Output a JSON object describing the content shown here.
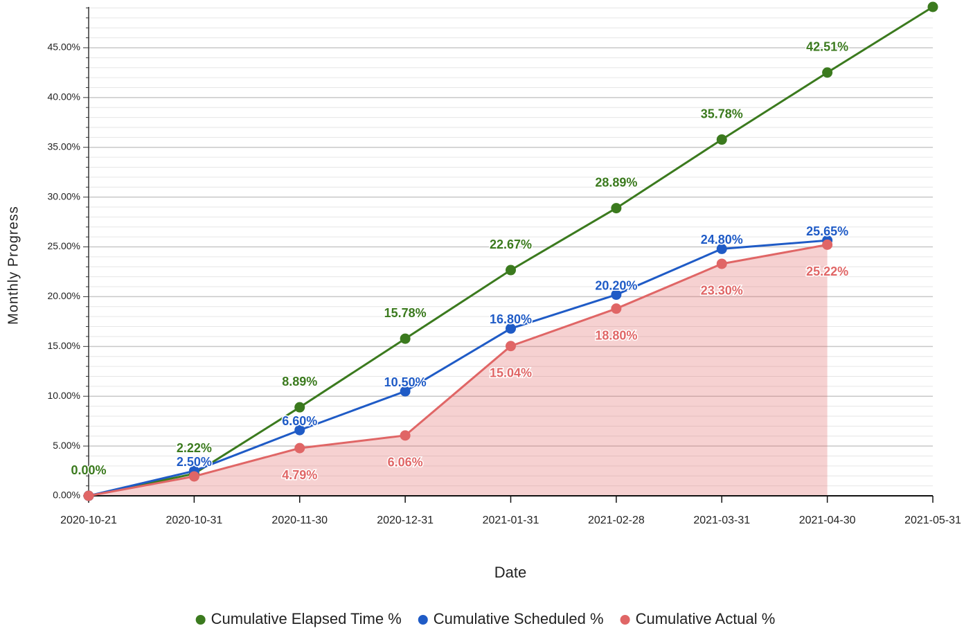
{
  "chart_data": {
    "type": "line",
    "x_label": "Date",
    "y_label": "Monthly Progress",
    "categories": [
      "2020-10-21",
      "2020-10-31",
      "2020-11-30",
      "2020-12-31",
      "2021-01-31",
      "2021-02-28",
      "2021-03-31",
      "2021-04-30",
      "2021-05-31"
    ],
    "series": [
      {
        "name": "Cumulative Elapsed Time %",
        "color": "#3b7a1e",
        "fill": false,
        "label_position": "above",
        "values": [
          0,
          2.22,
          8.89,
          15.78,
          22.67,
          28.89,
          35.78,
          42.51,
          49.1
        ],
        "value_labels": [
          "0.00%",
          "2.22%",
          "8.89%",
          "15.78%",
          "22.67%",
          "28.89%",
          "35.78%",
          "42.51%",
          null
        ]
      },
      {
        "name": "Cumulative Scheduled %",
        "color": "#1f5bc6",
        "fill": false,
        "label_position": "on",
        "values": [
          0,
          2.5,
          6.6,
          10.5,
          16.8,
          20.2,
          24.8,
          25.65,
          null
        ],
        "value_labels": [
          null,
          "2.50%",
          "6.60%",
          "10.50%",
          "16.80%",
          "20.20%",
          "24.80%",
          "25.65%",
          null
        ]
      },
      {
        "name": "Cumulative Actual %",
        "color": "#e06666",
        "fill": true,
        "label_position": "below",
        "values": [
          0,
          1.95,
          4.79,
          6.06,
          15.04,
          18.8,
          23.3,
          25.22,
          null
        ],
        "value_labels": [
          null,
          null,
          "4.79%",
          "6.06%",
          "15.04%",
          "18.80%",
          "23.30%",
          "25.22%",
          null
        ]
      }
    ],
    "ylim": [
      0,
      49.1
    ],
    "yticks": [
      {
        "value": 0,
        "label": "0.00%"
      },
      {
        "value": 5,
        "label": "5.00%"
      },
      {
        "value": 10,
        "label": "10.00%"
      },
      {
        "value": 15,
        "label": "15.00%"
      },
      {
        "value": 20,
        "label": "20.00%"
      },
      {
        "value": 25,
        "label": "25.00%"
      },
      {
        "value": 30,
        "label": "30.00%"
      },
      {
        "value": 35,
        "label": "35.00%"
      },
      {
        "value": 40,
        "label": "40.00%"
      },
      {
        "value": 45,
        "label": "45.00%"
      }
    ],
    "grid": true,
    "legend": "bottom"
  }
}
